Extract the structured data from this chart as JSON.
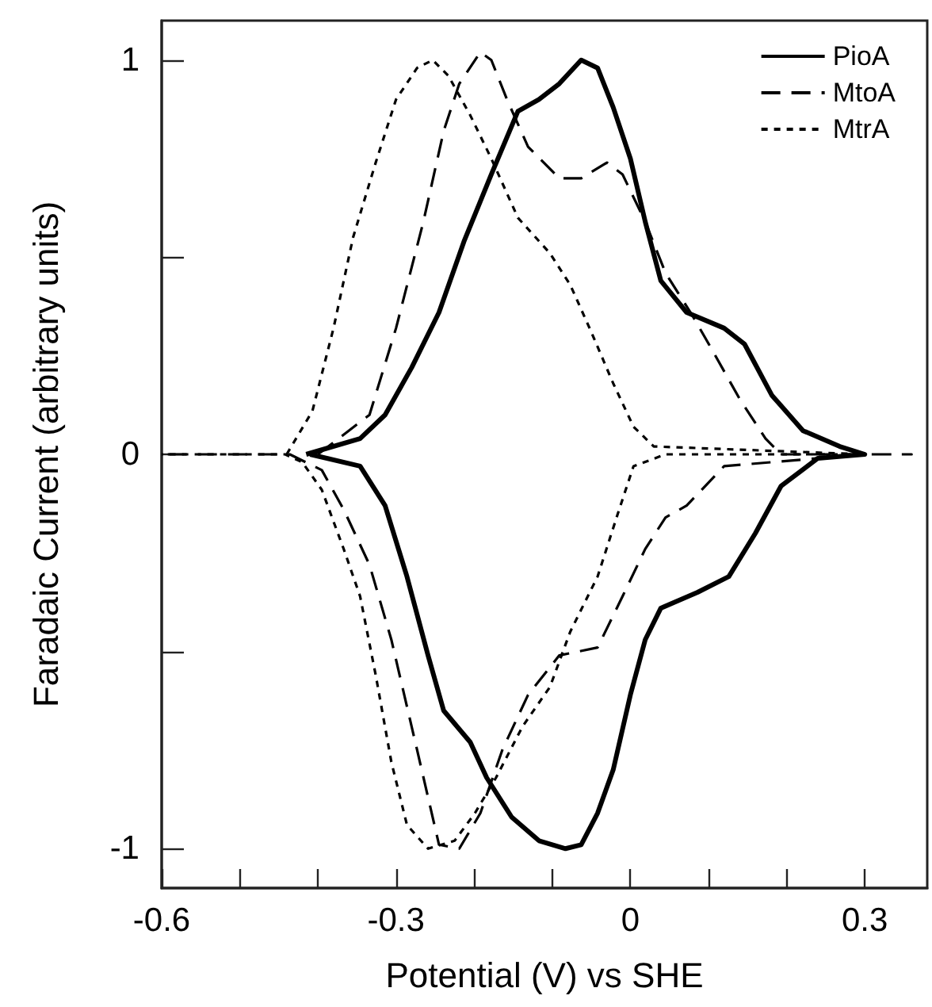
{
  "chart_data": {
    "type": "line",
    "xlabel": "Potential (V) vs SHE",
    "ylabel": "Faradaic Current (arbitrary units)",
    "xlim": [
      -0.6,
      0.38
    ],
    "xticks": [
      -0.6,
      {
        "value": -0.5,
        "label": null
      },
      {
        "value": -0.4,
        "label": null
      },
      -0.3,
      {
        "value": -0.2,
        "label": null
      },
      {
        "value": -0.1,
        "label": null
      },
      0,
      {
        "value": 0.1,
        "label": null
      },
      {
        "value": 0.2,
        "label": null
      },
      0.3
    ],
    "ylim": [
      -1.1,
      1.1
    ],
    "yticks": [
      -1,
      {
        "value": -0.5,
        "label": null
      },
      0,
      {
        "value": 0.5,
        "label": null
      },
      1
    ],
    "grid": false,
    "legend": "top right",
    "marker": "none",
    "series": [
      {
        "name": "PioA",
        "color": "#000000",
        "line_style": "solid",
        "x": [
          -0.415,
          -0.346,
          -0.314,
          -0.28,
          -0.245,
          -0.213,
          -0.178,
          -0.144,
          -0.117,
          -0.091,
          -0.063,
          -0.042,
          -0.022,
          0,
          0.019,
          0.039,
          0.072,
          0.12,
          0.146,
          0.181,
          0.221,
          0.268,
          0.3,
          0.24,
          0.193,
          0.16,
          0.126,
          0.086,
          0.039,
          0.019,
          0,
          -0.022,
          -0.042,
          -0.063,
          -0.083,
          -0.117,
          -0.152,
          -0.184,
          -0.205,
          -0.239,
          -0.259,
          -0.286,
          -0.314,
          -0.346,
          -0.41
        ],
        "values": [
          0,
          0.04,
          0.1,
          0.22,
          0.36,
          0.54,
          0.71,
          0.87,
          0.9,
          0.94,
          1,
          0.98,
          0.88,
          0.75,
          0.59,
          0.44,
          0.36,
          0.32,
          0.28,
          0.15,
          0.06,
          0.02,
          0,
          -0.01,
          -0.08,
          -0.2,
          -0.31,
          -0.35,
          -0.39,
          -0.47,
          -0.61,
          -0.8,
          -0.91,
          -0.99,
          -1,
          -0.98,
          -0.92,
          -0.82,
          -0.73,
          -0.65,
          -0.51,
          -0.31,
          -0.13,
          -0.03,
          0
        ]
      },
      {
        "name": "MtoA",
        "color": "#000000",
        "line_style": "dashed",
        "x": [
          -0.4,
          -0.334,
          -0.3,
          -0.265,
          -0.239,
          -0.219,
          -0.192,
          -0.178,
          -0.158,
          -0.131,
          -0.091,
          -0.063,
          -0.03,
          -0.01,
          0.019,
          0.045,
          0.08,
          0.106,
          0.14,
          0.173,
          0.193,
          0.3,
          0.36,
          0.3,
          0.12,
          0.072,
          0.045,
          0.019,
          -0.01,
          -0.042,
          -0.091,
          -0.131,
          -0.164,
          -0.192,
          -0.219,
          -0.245,
          -0.273,
          -0.306,
          -0.334,
          -0.367,
          -0.395,
          -0.436,
          -0.6
        ],
        "values": [
          0,
          0.1,
          0.32,
          0.59,
          0.82,
          0.94,
          1.02,
          1,
          0.9,
          0.78,
          0.7,
          0.7,
          0.74,
          0.71,
          0.59,
          0.46,
          0.35,
          0.26,
          0.14,
          0.04,
          0,
          0,
          0,
          0,
          -0.03,
          -0.13,
          -0.16,
          -0.24,
          -0.36,
          -0.49,
          -0.51,
          -0.61,
          -0.75,
          -0.91,
          -1,
          -0.99,
          -0.75,
          -0.47,
          -0.28,
          -0.14,
          -0.04,
          0,
          0
        ]
      },
      {
        "name": "MtrA",
        "color": "#000000",
        "line_style": "dotted",
        "x": [
          -0.44,
          -0.407,
          -0.38,
          -0.355,
          -0.326,
          -0.3,
          -0.273,
          -0.253,
          -0.233,
          -0.205,
          -0.178,
          -0.144,
          -0.103,
          -0.077,
          -0.05,
          -0.022,
          0.004,
          0.03,
          0.3,
          0.045,
          0.004,
          -0.016,
          -0.042,
          -0.077,
          -0.103,
          -0.138,
          -0.172,
          -0.199,
          -0.225,
          -0.259,
          -0.286,
          -0.306,
          -0.326,
          -0.346,
          -0.367,
          -0.395,
          -0.42,
          -0.442,
          -0.6
        ],
        "values": [
          0,
          0.11,
          0.32,
          0.55,
          0.74,
          0.9,
          0.98,
          1,
          0.96,
          0.86,
          0.75,
          0.6,
          0.51,
          0.43,
          0.31,
          0.18,
          0.07,
          0.02,
          0,
          0,
          -0.03,
          -0.15,
          -0.31,
          -0.45,
          -0.59,
          -0.69,
          -0.82,
          -0.91,
          -0.98,
          -1,
          -0.94,
          -0.78,
          -0.56,
          -0.36,
          -0.24,
          -0.09,
          -0.02,
          0,
          0
        ]
      }
    ]
  }
}
